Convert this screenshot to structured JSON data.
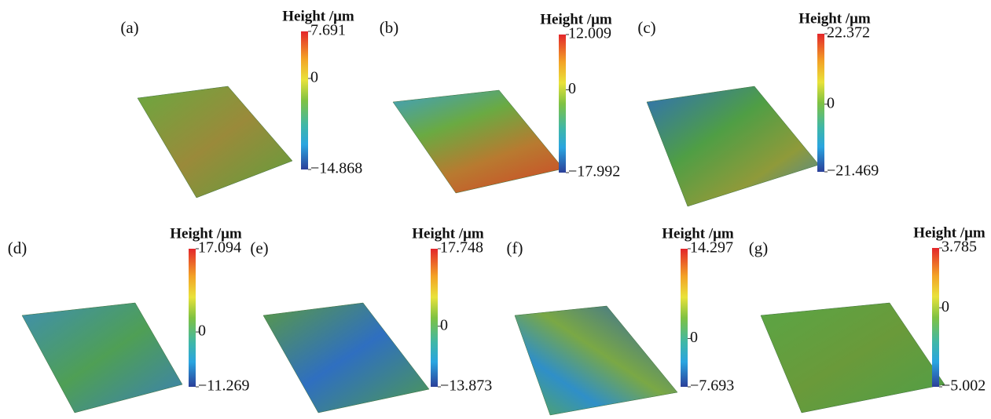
{
  "panels": [
    {
      "label": "(a)",
      "colorbar": {
        "title": "Height /μm",
        "ticks": [
          7.691,
          0,
          {
            "value": -14.868,
            "label": "−14.868"
          }
        ]
      }
    },
    {
      "label": "(b)",
      "colorbar": {
        "title": "Height /μm",
        "ticks": [
          12.009,
          0,
          {
            "value": -17.992,
            "label": "−17.992"
          }
        ]
      }
    },
    {
      "label": "(c)",
      "colorbar": {
        "title": "Height /μm",
        "ticks": [
          22.372,
          0,
          {
            "value": -21.469,
            "label": "−21.469"
          }
        ]
      }
    },
    {
      "label": "(d)",
      "colorbar": {
        "title": "Height /μm",
        "ticks": [
          17.094,
          0,
          {
            "value": -11.269,
            "label": "−11.269"
          }
        ]
      }
    },
    {
      "label": "(e)",
      "colorbar": {
        "title": "Height /μm",
        "ticks": [
          17.748,
          0,
          {
            "value": -13.873,
            "label": "−13.873"
          }
        ]
      }
    },
    {
      "label": "(f)",
      "colorbar": {
        "title": "Height /μm",
        "ticks": [
          14.297,
          0,
          {
            "value": -7.693,
            "label": "−7.693"
          }
        ]
      }
    },
    {
      "label": "(g)",
      "colorbar": {
        "title": "Height /μm",
        "ticks": [
          3.785,
          0,
          {
            "value": -5.002,
            "label": "−5.002"
          }
        ]
      }
    }
  ]
}
